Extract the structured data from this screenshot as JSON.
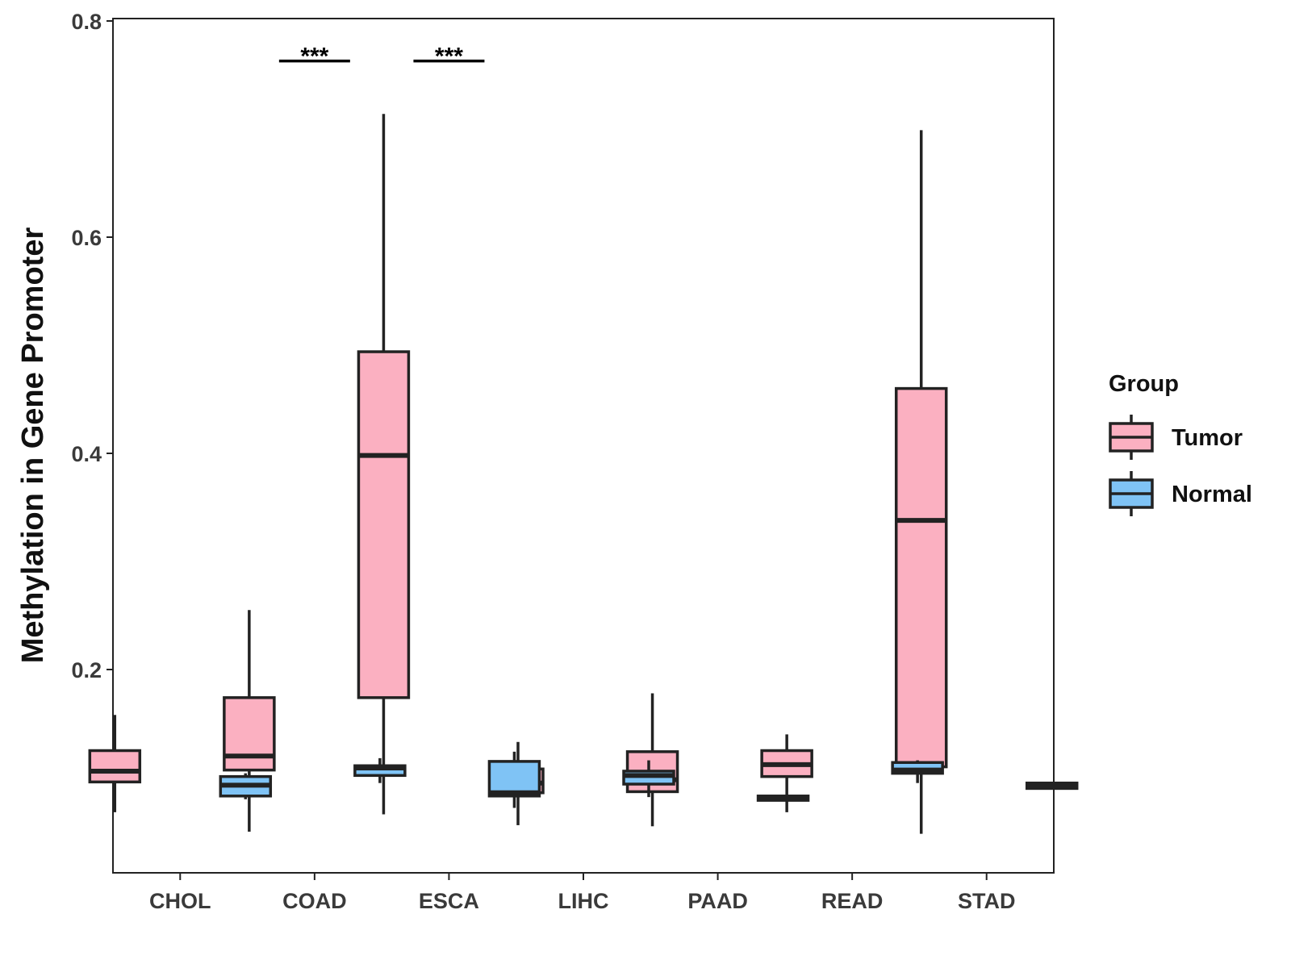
{
  "chart_data": {
    "type": "boxplot",
    "title": "",
    "xlabel": "",
    "ylabel": "Methylation in Gene Promoter",
    "ylim": [
      0.02,
      0.8
    ],
    "yticks": [
      0.2,
      0.4,
      0.6,
      0.8
    ],
    "ytick_labels": [
      "0.2",
      "0.4",
      "0.6",
      "0.8"
    ],
    "grid": false,
    "categories": [
      "CHOL",
      "COAD",
      "ESCA",
      "LIHC",
      "PAAD",
      "READ",
      "STAD"
    ],
    "legend": {
      "title": "Group",
      "position": "right",
      "items": [
        {
          "name": "Tumor",
          "color": "#fbb0c1"
        },
        {
          "name": "Normal",
          "color": "#7fc3f5"
        }
      ]
    },
    "series": [
      {
        "name": "Tumor",
        "color": "#fbb0c1",
        "boxes": [
          {
            "category": "CHOL",
            "min": 0.068,
            "q1": 0.096,
            "median": 0.106,
            "q3": 0.125,
            "max": 0.158
          },
          {
            "category": "COAD",
            "min": 0.05,
            "q1": 0.107,
            "median": 0.12,
            "q3": 0.174,
            "max": 0.255
          },
          {
            "category": "ESCA",
            "min": 0.066,
            "q1": 0.174,
            "median": 0.398,
            "q3": 0.494,
            "max": 0.714
          },
          {
            "category": "LIHC",
            "min": 0.056,
            "q1": 0.086,
            "median": 0.095,
            "q3": 0.108,
            "max": 0.133
          },
          {
            "category": "PAAD",
            "min": 0.055,
            "q1": 0.087,
            "median": 0.098,
            "q3": 0.124,
            "max": 0.178
          },
          {
            "category": "READ",
            "min": 0.068,
            "q1": 0.101,
            "median": 0.112,
            "q3": 0.125,
            "max": 0.14
          },
          {
            "category": "STAD",
            "min": 0.048,
            "q1": 0.11,
            "median": 0.338,
            "q3": 0.46,
            "max": 0.699
          }
        ]
      },
      {
        "name": "Normal",
        "color": "#7fc3f5",
        "boxes": [
          {
            "category": "CHOL",
            "min": 0.08,
            "q1": 0.083,
            "median": 0.093,
            "q3": 0.101,
            "max": 0.104
          },
          {
            "category": "COAD",
            "min": 0.095,
            "q1": 0.102,
            "median": 0.109,
            "q3": 0.111,
            "max": 0.118
          },
          {
            "category": "ESCA",
            "min": 0.072,
            "q1": 0.083,
            "median": 0.086,
            "q3": 0.115,
            "max": 0.124
          },
          {
            "category": "LIHC",
            "min": 0.082,
            "q1": 0.094,
            "median": 0.102,
            "q3": 0.106,
            "max": 0.116
          },
          {
            "category": "PAAD",
            "min": 0.078,
            "q1": 0.079,
            "median": 0.081,
            "q3": 0.083,
            "max": 0.084
          },
          {
            "category": "READ",
            "min": 0.095,
            "q1": 0.104,
            "median": 0.107,
            "q3": 0.114,
            "max": 0.116
          },
          {
            "category": "STAD",
            "min": 0.089,
            "q1": 0.09,
            "median": 0.092,
            "q3": 0.095,
            "max": 0.096
          }
        ]
      }
    ],
    "annotations": [
      {
        "category": "COAD",
        "label": "***",
        "y": 0.763
      },
      {
        "category": "ESCA",
        "label": "***",
        "y": 0.763
      }
    ]
  }
}
